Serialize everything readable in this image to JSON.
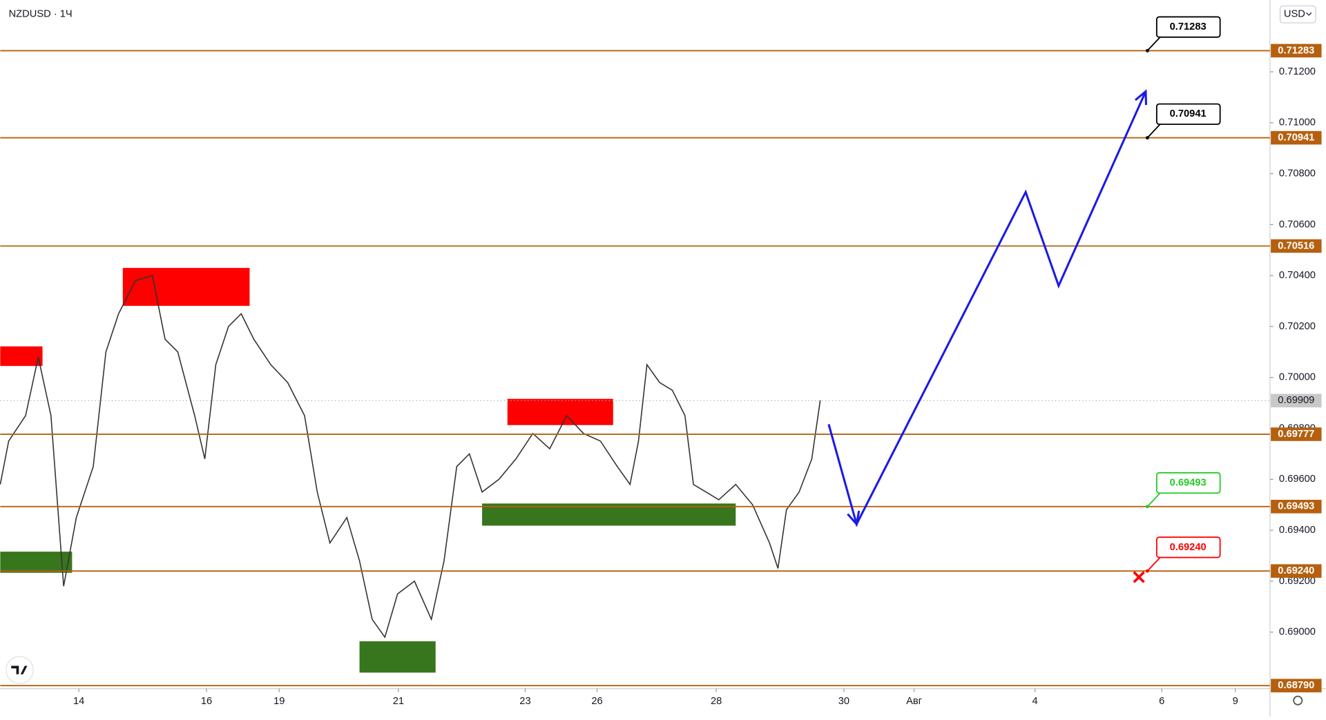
{
  "chart_data": {
    "type": "line",
    "title": "NZDUSD · 1Ч",
    "currency": "USD",
    "xlim": [
      0,
      150.2
    ],
    "ylim": [
      0.68778,
      0.71482
    ],
    "xticks": [
      {
        "value": 9.3,
        "label": "14"
      },
      {
        "value": 24.4,
        "label": "16"
      },
      {
        "value": 33,
        "label": "19"
      },
      {
        "value": 47.1,
        "label": "21"
      },
      {
        "value": 62.1,
        "label": "23"
      },
      {
        "value": 70.6,
        "label": "26"
      },
      {
        "value": 84.7,
        "label": "28"
      },
      {
        "value": 99.8,
        "label": "30"
      },
      {
        "value": 108.1,
        "label": "Авг"
      },
      {
        "value": 122.4,
        "label": "4"
      },
      {
        "value": 137.4,
        "label": "6"
      },
      {
        "value": 146.1,
        "label": "9"
      }
    ],
    "yticks": [
      {
        "value": 0.69,
        "label": "0.69000"
      },
      {
        "value": 0.692,
        "label": "0.69200"
      },
      {
        "value": 0.694,
        "label": "0.69400"
      },
      {
        "value": 0.696,
        "label": "0.69600"
      },
      {
        "value": 0.698,
        "label": "0.69800"
      },
      {
        "value": 0.7,
        "label": "0.70000"
      },
      {
        "value": 0.702,
        "label": "0.70200"
      },
      {
        "value": 0.704,
        "label": "0.70400"
      },
      {
        "value": 0.706,
        "label": "0.70600"
      },
      {
        "value": 0.708,
        "label": "0.70800"
      },
      {
        "value": 0.71,
        "label": "0.71000"
      },
      {
        "value": 0.712,
        "label": "0.71200"
      }
    ],
    "series": [
      {
        "color": "#333333",
        "x": [
          0,
          1,
          3,
          4.5,
          6,
          7.5,
          9,
          11,
          12.5,
          14,
          16,
          18,
          19.5,
          21,
          23,
          24.2,
          25.5,
          27,
          28.5,
          30,
          32,
          34,
          36,
          37.5,
          39,
          41,
          42.5,
          44,
          45.5,
          47,
          49,
          51,
          52.5,
          54,
          55.5,
          57,
          59,
          61,
          63,
          65,
          67,
          69,
          71,
          73,
          74.5,
          75.5,
          76.5,
          78,
          79.5,
          81,
          82,
          83.5,
          85,
          87,
          89,
          91,
          92,
          93,
          94.5,
          96,
          97
        ],
        "values": [
          0.6958,
          0.6975,
          0.6985,
          0.7008,
          0.6985,
          0.6918,
          0.6945,
          0.6965,
          0.701,
          0.7025,
          0.7038,
          0.704,
          0.7015,
          0.701,
          0.6985,
          0.6968,
          0.7005,
          0.702,
          0.7025,
          0.7015,
          0.7005,
          0.6998,
          0.6985,
          0.6955,
          0.6935,
          0.6945,
          0.6928,
          0.6905,
          0.6898,
          0.6915,
          0.692,
          0.6905,
          0.6928,
          0.6965,
          0.697,
          0.6955,
          0.696,
          0.6968,
          0.6978,
          0.6972,
          0.6985,
          0.6978,
          0.6975,
          0.6965,
          0.6958,
          0.6975,
          0.7005,
          0.6998,
          0.6995,
          0.6985,
          0.6958,
          0.6955,
          0.6952,
          0.6958,
          0.695,
          0.6935,
          0.6925,
          0.6948,
          0.6955,
          0.6968,
          0.6991
        ]
      }
    ],
    "current_price": 0.69909,
    "level_color": "#b5600f",
    "levels": [
      0.71283,
      0.70941,
      0.70516,
      0.69777,
      0.69493,
      {
        "value": 0.6924,
        "label": "0.69240"
      },
      {
        "value": 0.6879,
        "label": "0.68790"
      }
    ],
    "zones": [
      {
        "color": "#ff0000",
        "x": [
          0,
          5
        ],
        "y": [
          0.70045,
          0.70122
        ]
      },
      {
        "color": "#ff0000",
        "x": [
          14.5,
          29.5
        ],
        "y": [
          0.70281,
          0.7043
        ]
      },
      {
        "color": "#ff0000",
        "x": [
          60,
          72.5
        ],
        "y": [
          0.69813,
          0.69916
        ]
      },
      {
        "color": "#38761d",
        "x": [
          0,
          8.5
        ],
        "y": [
          0.69233,
          0.69316
        ]
      },
      {
        "color": "#38761d",
        "x": [
          42.5,
          51.5
        ],
        "y": [
          0.68841,
          0.68964
        ]
      },
      {
        "color": "#38761d",
        "x": [
          57,
          87
        ],
        "y": [
          0.69418,
          0.69505
        ]
      }
    ],
    "forecast": {
      "color": "#1a1ae6",
      "x": [
        98,
        101.3,
        121.3,
        125.2,
        135.5
      ],
      "values": [
        0.69816,
        0.69424,
        0.70728,
        0.7036,
        0.71123
      ]
    },
    "callouts": [
      {
        "value": 0.71283,
        "color": "#000000"
      },
      {
        "value": 0.70941,
        "color": "#000000"
      },
      {
        "value": 0.69493,
        "color": "#22cc22"
      },
      {
        "value": 0.6924,
        "label": "0.69240",
        "color": "#ff0000"
      }
    ]
  }
}
